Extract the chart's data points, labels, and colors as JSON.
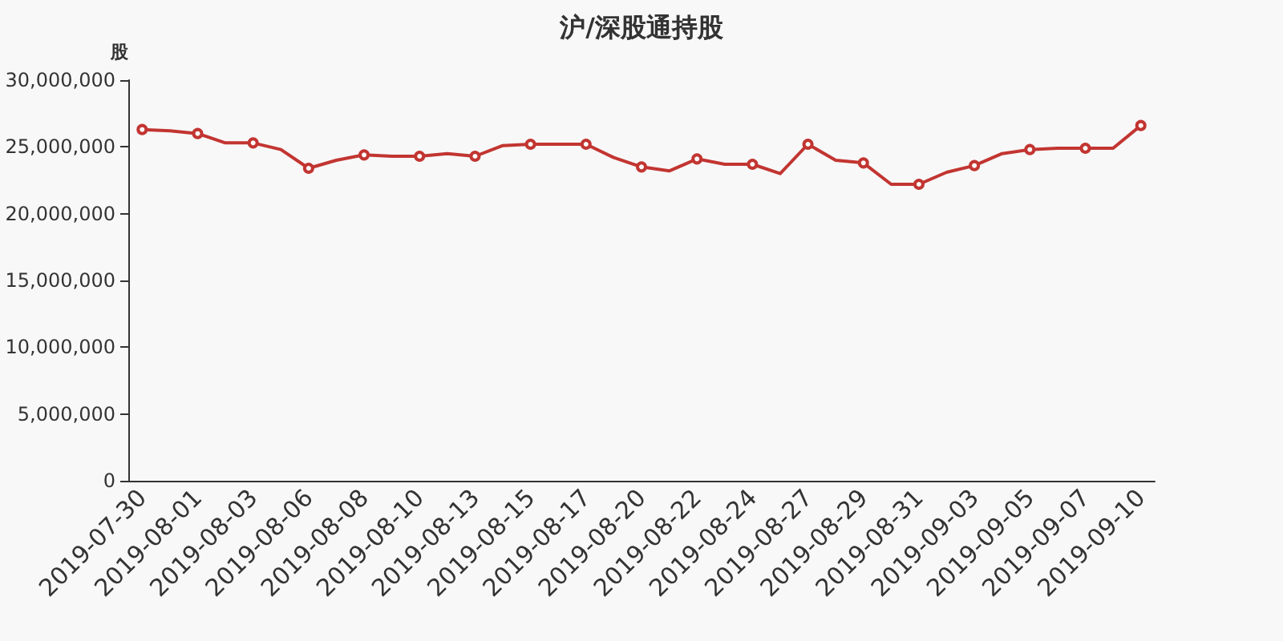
{
  "chart_data": {
    "type": "line",
    "title": "沪/深股通持股",
    "ylabel": "股",
    "categories": [
      "2019-07-30",
      null,
      "2019-08-01",
      null,
      "2019-08-03",
      null,
      "2019-08-06",
      null,
      "2019-08-08",
      null,
      "2019-08-10",
      null,
      "2019-08-13",
      null,
      "2019-08-15",
      null,
      "2019-08-17",
      null,
      "2019-08-20",
      null,
      "2019-08-22",
      null,
      "2019-08-24",
      null,
      "2019-08-27",
      null,
      "2019-08-29",
      null,
      "2019-08-31",
      null,
      "2019-09-03",
      null,
      "2019-09-05",
      null,
      "2019-09-07",
      null,
      "2019-09-10"
    ],
    "series": [
      {
        "color": "#c23531",
        "values": [
          26300000,
          26200000,
          26000000,
          25300000,
          25300000,
          24800000,
          23400000,
          24000000,
          24400000,
          24300000,
          24300000,
          24500000,
          24300000,
          25100000,
          25200000,
          25200000,
          25200000,
          24200000,
          23500000,
          23200000,
          24100000,
          23700000,
          23700000,
          23000000,
          25200000,
          24000000,
          23800000,
          22200000,
          22200000,
          23100000,
          23600000,
          24500000,
          24800000,
          24900000,
          24900000,
          24900000,
          26600000
        ]
      }
    ],
    "ylim": [
      0,
      30000000
    ],
    "yticks": [
      0,
      {
        "value": 5000000,
        "label": "5,000,000"
      },
      {
        "value": 10000000,
        "label": "10,000,000"
      },
      {
        "value": 15000000,
        "label": "15,000,000"
      },
      {
        "value": 20000000,
        "label": "20,000,000"
      },
      {
        "value": 25000000,
        "label": "25,000,000"
      },
      {
        "value": 30000000,
        "label": "30,000,000"
      }
    ],
    "grid": false,
    "marker": "circle",
    "line_style": "solid"
  }
}
